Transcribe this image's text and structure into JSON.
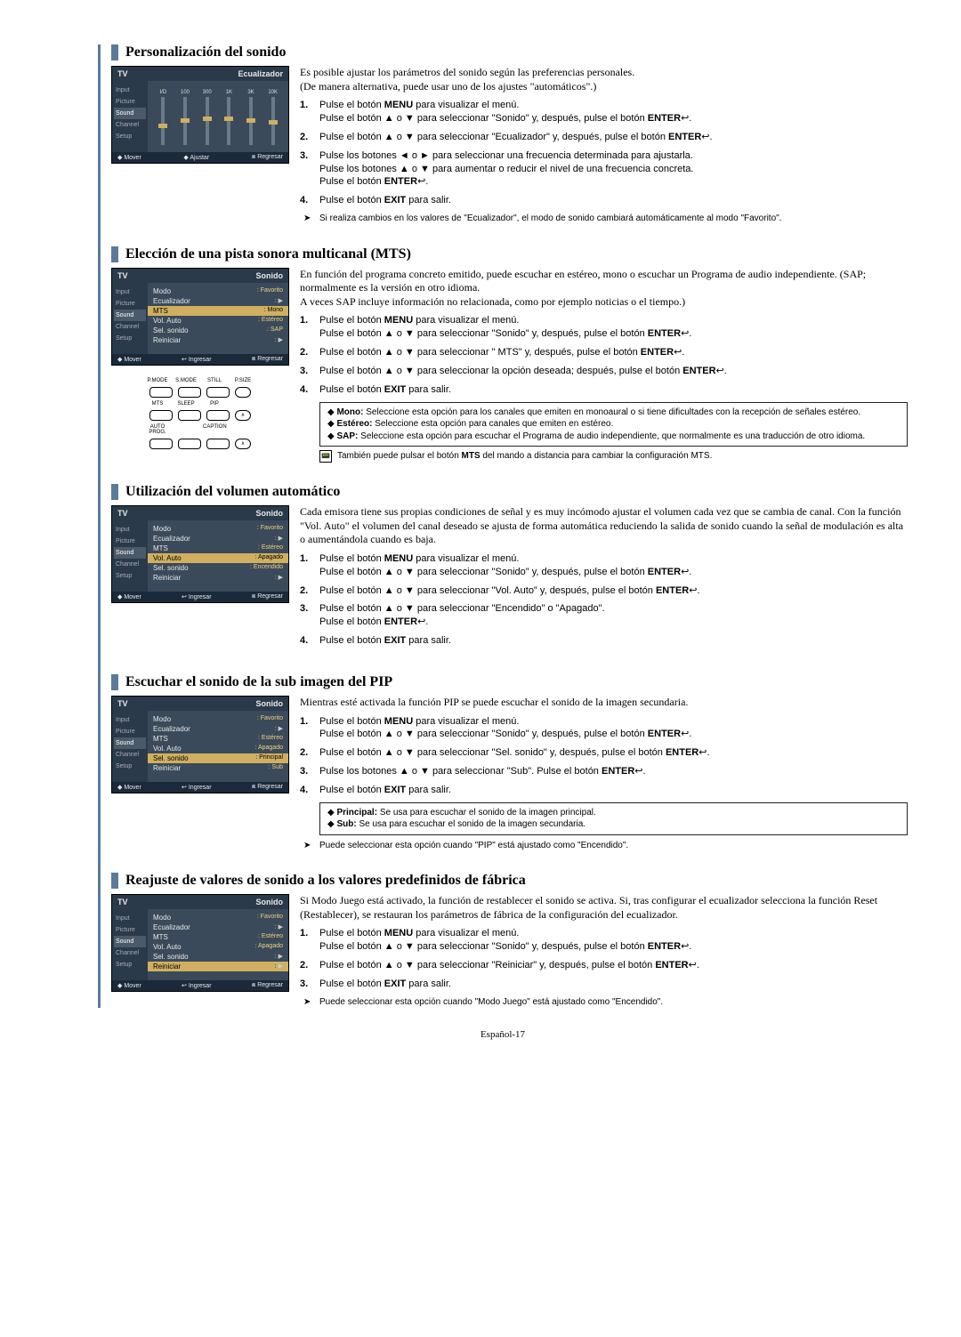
{
  "page_number": "Español-17",
  "arrows": {
    "up": "▲",
    "down": "▼",
    "left": "◄",
    "right": "►",
    "enter_icon": "↩"
  },
  "sections": {
    "s1": {
      "title": "Personalización del sonido",
      "intro1": "Es posible ajustar los parámetros del sonido según las preferencias personales.",
      "intro2": "(De manera alternativa, puede usar uno de los ajustes \"automáticos\".)",
      "step1a": "Pulse el botón ",
      "step1b": " para visualizar el menú.",
      "step1c": "Pulse el botón ▲ o ▼ para seleccionar \"Sonido\" y, después, pulse el botón ",
      "step2": "Pulse el botón ▲ o ▼ para seleccionar \"Ecualizador\" y, después, pulse el botón ",
      "step3a": "Pulse los botones ◄ o ► para seleccionar una frecuencia determinada para ajustarla.",
      "step3b": "Pulse los botones ▲ o ▼ para aumentar o reducir el nivel de una frecuencia concreta.",
      "step3c": "Pulse el botón ",
      "step4": "Pulse el botón ",
      "step4b": " para salir.",
      "footnote": "Si realiza cambios en los valores de \"Ecualizador\", el modo de sonido cambiará automáticamente al modo \"Favorito\".",
      "osd": {
        "tv": "TV",
        "title": "Ecualizador",
        "side": [
          "Input",
          "Picture",
          "Sound",
          "Channel",
          "Setup"
        ],
        "eq_labels": [
          "I/D",
          "100",
          "300",
          "1K",
          "3K",
          "10K"
        ],
        "eq_pos": [
          30,
          24,
          22,
          22,
          24,
          26
        ],
        "footer": [
          "◆ Mover",
          "◆ Ajustar",
          "⧈ Regresar"
        ]
      }
    },
    "s2": {
      "title": "Elección de una pista sonora multicanal (MTS)",
      "intro1": "En función del programa concreto emitido, puede escuchar en estéreo, mono o escuchar un Programa de audio independiente. (SAP; normalmente es la versión en otro idioma.",
      "intro2": "A veces SAP incluye información no relacionada, como por ejemplo noticias o el tiempo.)",
      "step1a": "Pulse el botón ",
      "step1b": " para visualizar el menú.",
      "step1c": "Pulse el botón ▲ o ▼ para seleccionar \"Sonido\" y, después, pulse el botón ",
      "step2": "Pulse el botón ▲ o ▼ para seleccionar \" MTS\" y, después, pulse el botón ",
      "step3": "Pulse el botón ▲ o ▼ para seleccionar la opción deseada; después, pulse el botón ",
      "step4": "Pulse el botón ",
      "step4b": " para salir.",
      "note_mono_lbl": "Mono:",
      "note_mono": " Seleccione esta opción para los canales que emiten en monoaural o si tiene dificultades con la recepción de señales estéreo.",
      "note_est_lbl": "Estéreo:",
      "note_est": " Seleccione esta opción para canales que emiten en estéreo.",
      "note_sap_lbl": "SAP:",
      "note_sap": " Seleccione esta opción para escuchar el Programa de audio independiente, que normalmente es una traducción de otro idioma.",
      "remote_note": "También puede pulsar el botón MTS del mando a distancia para cambiar la configuración MTS.",
      "osd": {
        "tv": "TV",
        "title": "Sonido",
        "side": [
          "Input",
          "Picture",
          "Sound",
          "Channel",
          "Setup"
        ],
        "rows": [
          {
            "k": "Modo",
            "v": "Favorito"
          },
          {
            "k": "Ecualizador",
            "v": ""
          },
          {
            "k": "MTS",
            "v": "Mono",
            "hl": true
          },
          {
            "k": "Vol. Auto",
            "v": "Estéreo"
          },
          {
            "k": "Sel. sonido",
            "v": "SAP"
          },
          {
            "k": "Reiniciar",
            "v": ""
          }
        ],
        "footer": [
          "◆ Mover",
          "↩ Ingresar",
          "⧈ Regresar"
        ]
      },
      "remote": {
        "labels": [
          [
            "P.MODE",
            "S.MODE",
            "STILL",
            "P.SIZE"
          ],
          [
            "MTS",
            "SLEEP",
            "PIP",
            ""
          ],
          [
            "AUTO PROG.",
            "",
            "CAPTION",
            ""
          ]
        ]
      }
    },
    "s3": {
      "title": "Utilización del volumen automático",
      "intro": "Cada emisora tiene sus propias condiciones de señal y es muy incómodo ajustar el volumen cada vez que se cambia de canal. Con la función \"Vol. Auto\" el volumen del canal deseado se ajusta de forma automática reduciendo la salida de sonido cuando la señal de modulación es alta o aumentándola cuando es baja.",
      "step1a": "Pulse el botón ",
      "step1b": " para visualizar el menú.",
      "step1c": "Pulse el botón ▲ o ▼ para seleccionar \"Sonido\" y, después, pulse el botón ",
      "step2": "Pulse el botón ▲ o ▼ para seleccionar \"Vol. Auto\" y, después, pulse el botón ",
      "step3a": "Pulse el botón ▲ o ▼ para seleccionar \"Encendido\" o \"Apagado\".",
      "step3b": "Pulse el botón ",
      "step4": "Pulse el botón ",
      "step4b": " para salir.",
      "osd": {
        "tv": "TV",
        "title": "Sonido",
        "side": [
          "Input",
          "Picture",
          "Sound",
          "Channel",
          "Setup"
        ],
        "rows": [
          {
            "k": "Modo",
            "v": "Favorito"
          },
          {
            "k": "Ecualizador",
            "v": ""
          },
          {
            "k": "MTS",
            "v": "Estéreo"
          },
          {
            "k": "Vol. Auto",
            "v": "Apagado",
            "hl": true
          },
          {
            "k": "Sel. sonido",
            "v": "Encendido"
          },
          {
            "k": "Reiniciar",
            "v": ""
          }
        ],
        "footer": [
          "◆ Mover",
          "↩ Ingresar",
          "⧈ Regresar"
        ]
      }
    },
    "s4": {
      "title": "Escuchar el sonido de la sub imagen del PIP",
      "intro": "Mientras esté activada la función PIP se puede escuchar el sonido de la imagen secundaria.",
      "step1a": "Pulse el botón ",
      "step1b": " para visualizar el menú.",
      "step1c": "Pulse el botón ▲ o ▼ para seleccionar \"Sonido\" y, después, pulse el botón ",
      "step2": "Pulse el botón ▲ o ▼ para seleccionar \"Sel. sonido\" y, después, pulse el botón ",
      "step3": "Pulse los botones ▲ o ▼ para seleccionar \"Sub\". Pulse el botón ",
      "step4": "Pulse el botón ",
      "step4b": " para salir.",
      "note_p_lbl": "Principal:",
      "note_p": " Se usa para escuchar el sonido de la imagen principal.",
      "note_s_lbl": "Sub:",
      "note_s": " Se usa para escuchar el sonido de la imagen secundaria.",
      "footnote": "Puede seleccionar esta opción cuando \"PIP\" está ajustado como \"Encendido\".",
      "osd": {
        "tv": "TV",
        "title": "Sonido",
        "side": [
          "Input",
          "Picture",
          "Sound",
          "Channel",
          "Setup"
        ],
        "rows": [
          {
            "k": "Modo",
            "v": "Favorito"
          },
          {
            "k": "Ecualizador",
            "v": ""
          },
          {
            "k": "MTS",
            "v": "Estéreo"
          },
          {
            "k": "Vol. Auto",
            "v": "Apagado"
          },
          {
            "k": "Sel. sonido",
            "v": "Principal",
            "hl": true
          },
          {
            "k": "Reiniciar",
            "v": "Sub"
          }
        ],
        "footer": [
          "◆ Mover",
          "↩ Ingresar",
          "⧈ Regresar"
        ]
      }
    },
    "s5": {
      "title": "Reajuste de valores de sonido a los valores predefinidos de fábrica",
      "intro": "Si Modo Juego está activado, la función de restablecer el sonido se activa. Si, tras configurar el ecualizador selecciona la función Reset (Restablecer), se restauran los parámetros de fábrica de la  configuración del ecualizador.",
      "step1a": "Pulse el botón ",
      "step1b": " para visualizar el menú.",
      "step1c": "Pulse el botón ▲ o ▼ para seleccionar \"Sonido\" y, después, pulse el botón ",
      "step2": "Pulse el botón ▲ o ▼ para seleccionar \"Reiniciar\" y, después, pulse el botón ",
      "step3": "Pulse el botón ",
      "step3b": " para salir.",
      "footnote": "Puede seleccionar esta opción cuando \"Modo Juego\" está ajustado como \"Encendido\".",
      "osd": {
        "tv": "TV",
        "title": "Sonido",
        "side": [
          "Input",
          "Picture",
          "Sound",
          "Channel",
          "Setup"
        ],
        "rows": [
          {
            "k": "Modo",
            "v": "Favorito"
          },
          {
            "k": "Ecualizador",
            "v": ""
          },
          {
            "k": "MTS",
            "v": "Estéreo"
          },
          {
            "k": "Vol. Auto",
            "v": "Apagado"
          },
          {
            "k": "Sel. sonido",
            "v": ""
          },
          {
            "k": "Reiniciar",
            "v": "",
            "hl": true
          }
        ],
        "footer": [
          "◆ Mover",
          "↩ Ingresar",
          "⧈ Regresar"
        ]
      }
    }
  },
  "bold": {
    "MENU": "MENU",
    "ENTER": "ENTER",
    "EXIT": "EXIT",
    "MTS": "MTS"
  }
}
